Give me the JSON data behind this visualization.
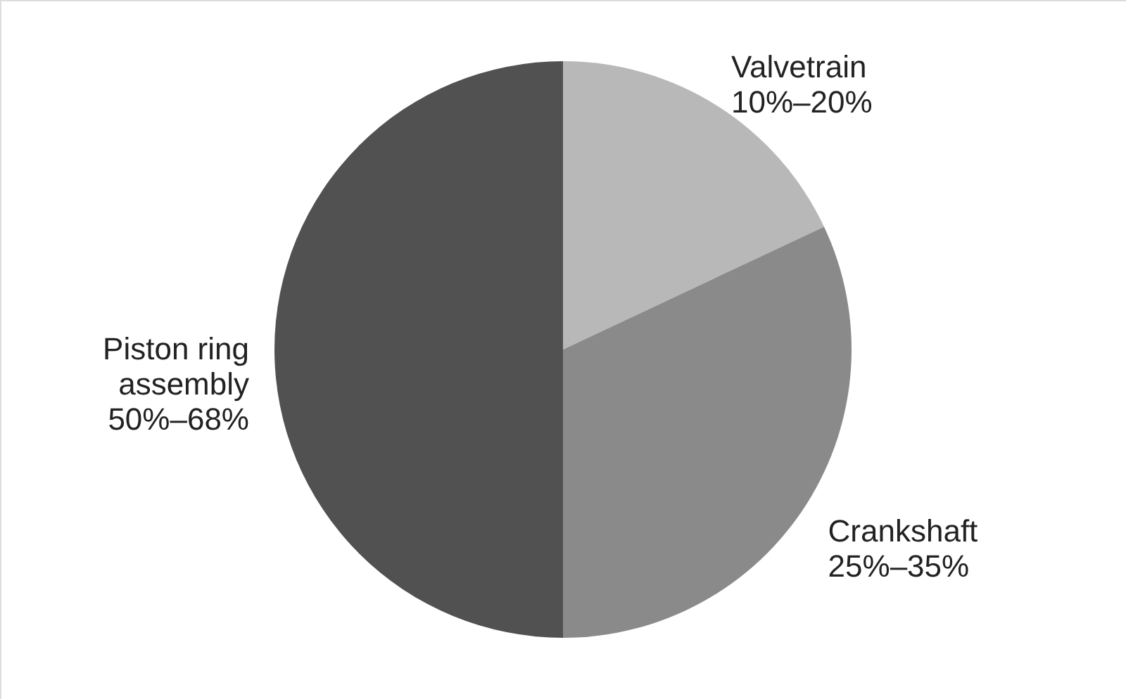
{
  "chart_data": {
    "type": "pie",
    "categories": [
      "Valvetrain",
      "Crankshaft",
      "Piston ring assembly"
    ],
    "values": [
      18,
      32,
      50
    ],
    "colors": [
      "#b8b8b8",
      "#8a8a8a",
      "#515151"
    ],
    "annotations": [
      {
        "text": "10%–20%",
        "x": "Valvetrain"
      },
      {
        "text": "25%–35%",
        "x": "Crankshaft"
      },
      {
        "text": "50%–68%",
        "x": "Piston ring assembly"
      }
    ]
  }
}
